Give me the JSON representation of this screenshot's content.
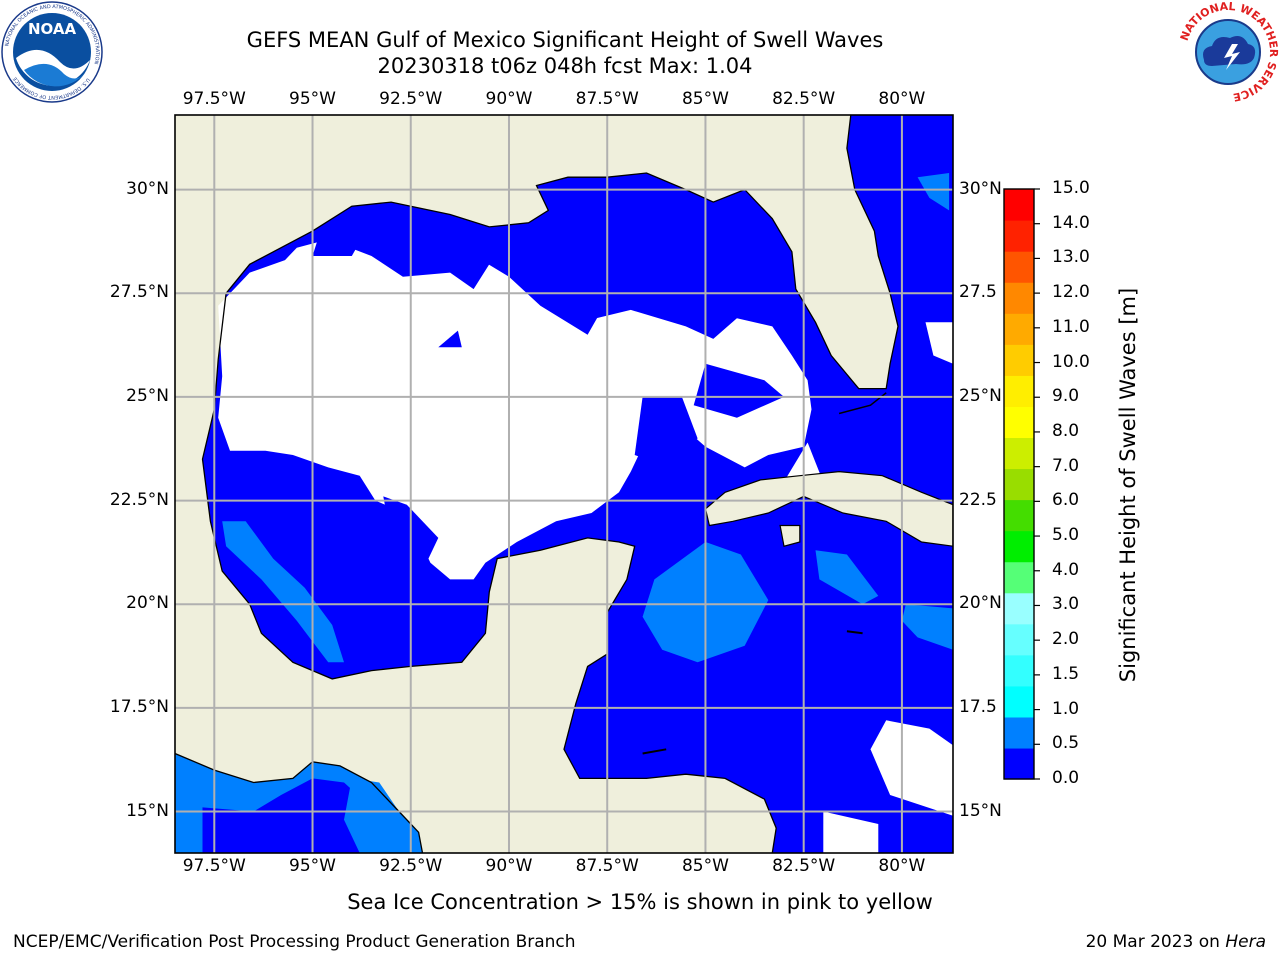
{
  "header": {
    "title_line1": "GEFS MEAN Gulf of Mexico Significant Height of Swell Waves",
    "title_line2": "20230318 t06z 048h fcst   Max: 1.04"
  },
  "logos": {
    "left": {
      "name": "NOAA",
      "ring_text": "NATIONAL OCEANIC AND ATMOSPHERIC ADMINISTRATION",
      "ring_text_bottom": "U.S. DEPARTMENT OF COMMERCE"
    },
    "right": {
      "ring_text": "NATIONAL WEATHER SERVICE"
    }
  },
  "map": {
    "lon_range": [
      -98.5,
      -78.7
    ],
    "lat_range": [
      14.0,
      31.8
    ],
    "lon_labels": [
      "97.5°W",
      "95°W",
      "92.5°W",
      "90°W",
      "87.5°W",
      "85°W",
      "82.5°W",
      "80°W"
    ],
    "lon_values": [
      -97.5,
      -95,
      -92.5,
      -90,
      -87.5,
      -85,
      -82.5,
      -80
    ],
    "lat_labels_left": [
      "30°N",
      "27.5°N",
      "25°N",
      "22.5°N",
      "20°N",
      "17.5°N",
      "15°N"
    ],
    "lat_labels_right": [
      "30°N",
      "27.5",
      "25°N",
      "22.5",
      "20°N",
      "17.5",
      "15°N"
    ],
    "lat_values": [
      30,
      27.5,
      25,
      22.5,
      20,
      17.5,
      15
    ],
    "grid": true,
    "colors": {
      "land": "#efefdc",
      "sea_low": "#0000ff",
      "sea_mid": "#0080ff",
      "no_data": "#ffffff",
      "grid": "#b0b0b0"
    }
  },
  "colorbar": {
    "title": "Significant Height of Swell Waves [m]",
    "tick_labels": [
      "0.0",
      "0.5",
      "1.0",
      "1.5",
      "2.0",
      "3.0",
      "4.0",
      "5.0",
      "6.0",
      "7.0",
      "8.0",
      "9.0",
      "10.0",
      "11.0",
      "12.0",
      "13.0",
      "14.0",
      "15.0"
    ],
    "colors": [
      "#0000ff",
      "#0080ff",
      "#00ffff",
      "#33ffff",
      "#66ffff",
      "#99ffff",
      "#55ff77",
      "#00ee00",
      "#44dd00",
      "#99dd00",
      "#ccee00",
      "#ffff00",
      "#ffee00",
      "#ffcc00",
      "#ffaa00",
      "#ff8800",
      "#ff5500",
      "#ff2200",
      "#ff0000"
    ]
  },
  "footnote": "Sea Ice Concentration > 15% is shown in pink to yellow",
  "credits": {
    "left": "NCEP/EMC/Verification Post Processing Product Generation Branch",
    "right_date": "20 Mar 2023 on ",
    "right_machine": "Hera"
  }
}
